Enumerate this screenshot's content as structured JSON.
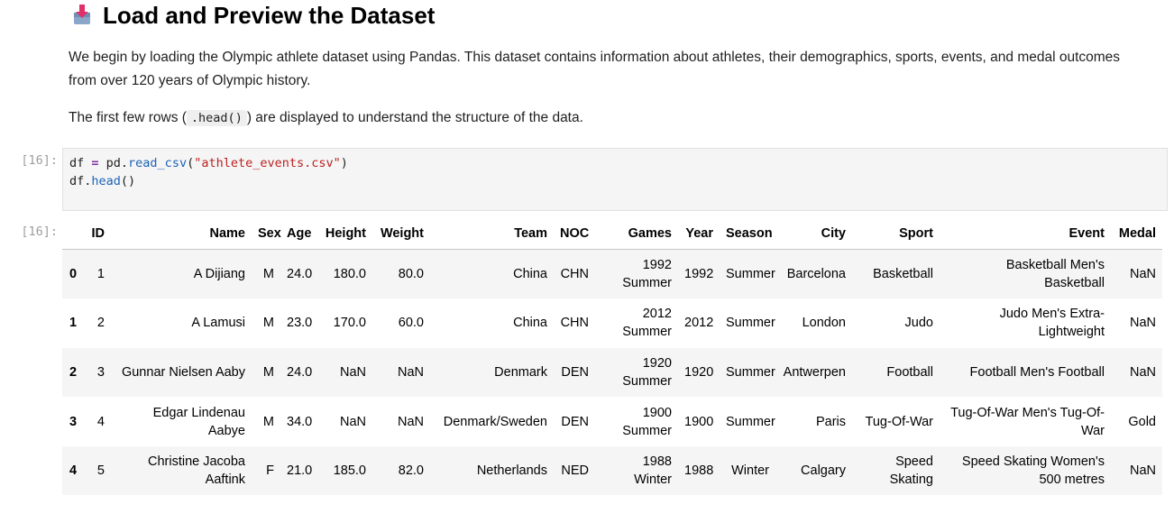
{
  "markdown": {
    "heading": "Load and Preview the Dataset",
    "paragraph1": "We begin by loading the Olympic athlete dataset using Pandas. This dataset contains information about athletes, their demographics, sports, events, and medal outcomes from over 120 years of Olympic history.",
    "paragraph2_before": "The first few rows (",
    "paragraph2_code": ".head()",
    "paragraph2_after": ") are displayed to understand the structure of the data."
  },
  "code_cell": {
    "prompt": "[16]:",
    "line1": {
      "a": "df",
      "b": " = ",
      "c": "pd.",
      "d": "read_csv",
      "e": "(",
      "f": "\"athlete_events.csv\"",
      "g": ")"
    },
    "line2": {
      "a": "df.",
      "b": "head",
      "c": "()"
    }
  },
  "output": {
    "prompt": "[16]:",
    "columns": [
      "",
      "ID",
      "Name",
      "Sex",
      "Age",
      "Height",
      "Weight",
      "Team",
      "NOC",
      "Games",
      "Year",
      "Season",
      "City",
      "Sport",
      "Event",
      "Medal"
    ],
    "rows": [
      [
        "0",
        "1",
        "A Dijiang",
        "M",
        "24.0",
        "180.0",
        "80.0",
        "China",
        "CHN",
        "1992 Summer",
        "1992",
        "Summer",
        "Barcelona",
        "Basketball",
        "Basketball Men's Basketball",
        "NaN"
      ],
      [
        "1",
        "2",
        "A Lamusi",
        "M",
        "23.0",
        "170.0",
        "60.0",
        "China",
        "CHN",
        "2012 Summer",
        "2012",
        "Summer",
        "London",
        "Judo",
        "Judo Men's Extra-Lightweight",
        "NaN"
      ],
      [
        "2",
        "3",
        "Gunnar Nielsen Aaby",
        "M",
        "24.0",
        "NaN",
        "NaN",
        "Denmark",
        "DEN",
        "1920 Summer",
        "1920",
        "Summer",
        "Antwerpen",
        "Football",
        "Football Men's Football",
        "NaN"
      ],
      [
        "3",
        "4",
        "Edgar Lindenau Aabye",
        "M",
        "34.0",
        "NaN",
        "NaN",
        "Denmark/Sweden",
        "DEN",
        "1900 Summer",
        "1900",
        "Summer",
        "Paris",
        "Tug-Of-War",
        "Tug-Of-War Men's Tug-Of-War",
        "Gold"
      ],
      [
        "4",
        "5",
        "Christine Jacoba Aaftink",
        "F",
        "21.0",
        "185.0",
        "82.0",
        "Netherlands",
        "NED",
        "1988 Winter",
        "1988",
        "Winter",
        "Calgary",
        "Speed Skating",
        "Speed Skating Women's 500 metres",
        "NaN"
      ]
    ]
  },
  "icons": {
    "heading_emoji": "inbox-tray-icon"
  }
}
